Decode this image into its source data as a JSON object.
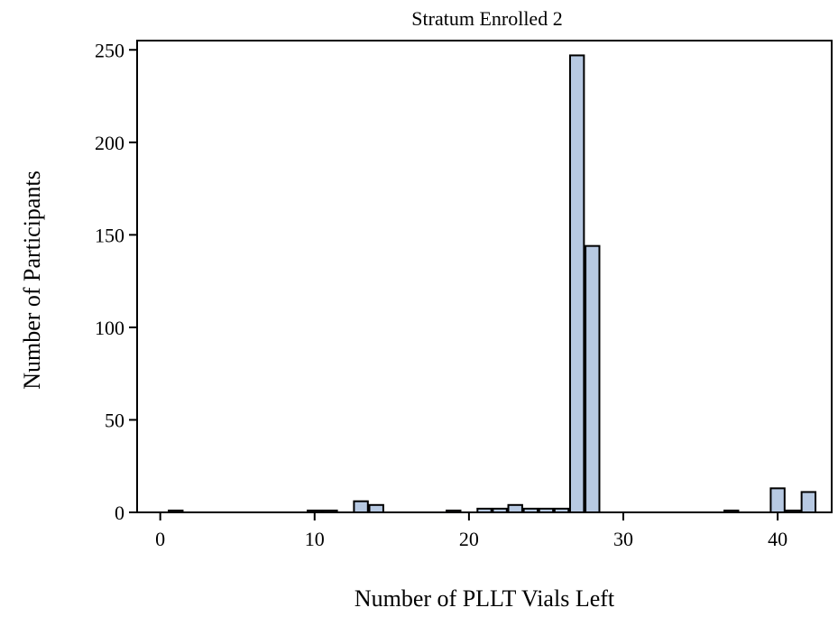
{
  "chart_data": {
    "type": "bar",
    "title": "Stratum Enrolled 2",
    "xlabel": "Number of PLLT Vials Left",
    "ylabel": "Number of Participants",
    "xlim": [
      -1.5,
      43.5
    ],
    "ylim": [
      0,
      255
    ],
    "xticks": [
      0,
      10,
      20,
      30,
      40
    ],
    "yticks": [
      0,
      50,
      100,
      150,
      200,
      250
    ],
    "grid": false,
    "bar_color": "#b7c9e2",
    "bar_edge_color": "#000000",
    "x": [
      1,
      10,
      11,
      13,
      14,
      19,
      21,
      22,
      23,
      24,
      25,
      26,
      27,
      28,
      37,
      40,
      41,
      42
    ],
    "values": [
      1,
      1,
      1,
      6,
      4,
      1,
      2,
      2,
      4,
      2,
      2,
      2,
      247,
      144,
      1,
      13,
      1,
      11
    ]
  }
}
